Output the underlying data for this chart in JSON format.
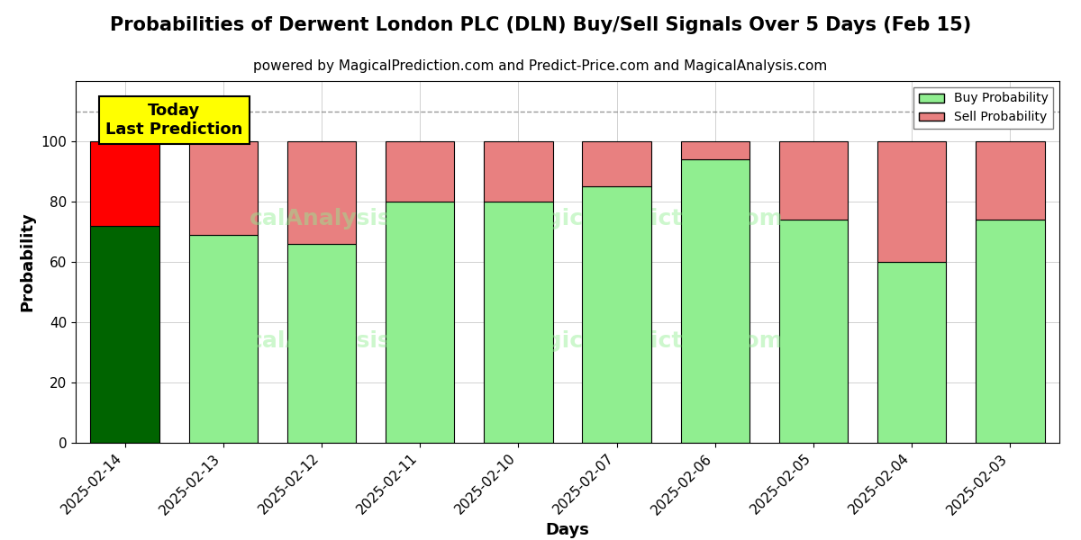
{
  "title": "Probabilities of Derwent London PLC (DLN) Buy/Sell Signals Over 5 Days (Feb 15)",
  "subtitle": "powered by MagicalPrediction.com and Predict-Price.com and MagicalAnalysis.com",
  "xlabel": "Days",
  "ylabel": "Probability",
  "dates": [
    "2025-02-14",
    "2025-02-13",
    "2025-02-12",
    "2025-02-11",
    "2025-02-10",
    "2025-02-07",
    "2025-02-06",
    "2025-02-05",
    "2025-02-04",
    "2025-02-03"
  ],
  "buy_values": [
    72,
    69,
    66,
    80,
    80,
    85,
    94,
    74,
    60,
    74
  ],
  "sell_values": [
    28,
    31,
    34,
    20,
    20,
    15,
    6,
    26,
    40,
    26
  ],
  "today_bar_index": 0,
  "today_buy_color": "#006400",
  "today_sell_color": "#ff0000",
  "normal_buy_color": "#90ee90",
  "normal_sell_color": "#e88080",
  "bar_edge_color": "#000000",
  "today_label_bg": "#ffff00",
  "today_label_text": "Today\nLast Prediction",
  "legend_buy_label": "Buy Probability",
  "legend_sell_label": "Sell Probability",
  "ylim": [
    0,
    120
  ],
  "yticks": [
    0,
    20,
    40,
    60,
    80,
    100
  ],
  "dashed_line_y": 110,
  "background_color": "#ffffff",
  "title_fontsize": 15,
  "subtitle_fontsize": 11,
  "axis_label_fontsize": 13,
  "tick_fontsize": 11,
  "bar_width": 0.7
}
